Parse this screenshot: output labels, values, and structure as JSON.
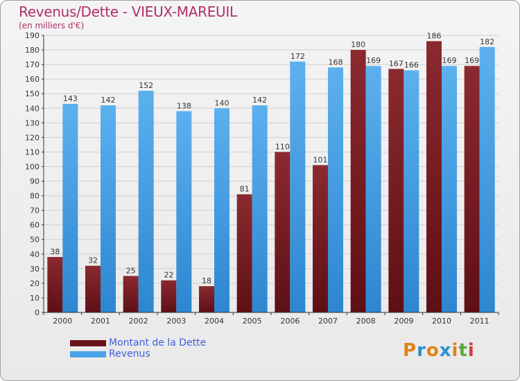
{
  "title": "Revenus/Dette - VIEUX-MAREUIL",
  "subtitle": "(en milliers d'€)",
  "logo": {
    "text": "Proxiti",
    "letters": [
      {
        "ch": "P",
        "color": "#e0821e"
      },
      {
        "ch": "r",
        "color": "#2d8fd0"
      },
      {
        "ch": "o",
        "color": "#e0821e"
      },
      {
        "ch": "x",
        "color": "#2d8fd0"
      },
      {
        "ch": "i",
        "color": "#e0821e"
      },
      {
        "ch": "t",
        "color": "#5aa83c"
      },
      {
        "ch": "i",
        "color": "#d03a3a"
      }
    ]
  },
  "colors": {
    "debt": "#7a1b22",
    "revenue": "#4aa3e8",
    "grid": "#cfcfcf",
    "axis": "#333333"
  },
  "chart_data": {
    "type": "bar",
    "categories": [
      "2000",
      "2001",
      "2002",
      "2003",
      "2004",
      "2005",
      "2006",
      "2007",
      "2008",
      "2009",
      "2010",
      "2011"
    ],
    "series": [
      {
        "name": "Montant de la Dette",
        "values": [
          38,
          32,
          25,
          22,
          18,
          81,
          110,
          101,
          180,
          167,
          186,
          169
        ]
      },
      {
        "name": "Revenus",
        "values": [
          143,
          142,
          152,
          138,
          140,
          142,
          172,
          168,
          169,
          166,
          169,
          182
        ]
      }
    ],
    "ylim": [
      0,
      190
    ],
    "yticks": [
      0,
      10,
      20,
      30,
      40,
      50,
      60,
      70,
      80,
      90,
      100,
      110,
      120,
      130,
      140,
      150,
      160,
      170,
      180,
      190
    ],
    "grid": true,
    "legend": "bottom-left"
  }
}
